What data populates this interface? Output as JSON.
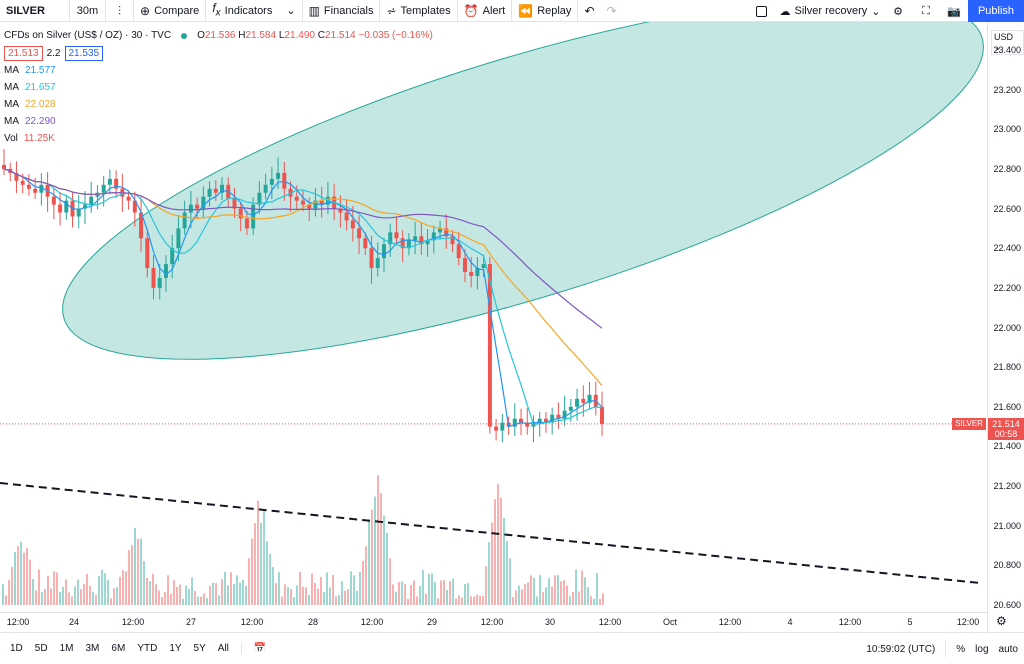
{
  "toolbar": {
    "symbol": "SILVER",
    "interval": "30m",
    "compare": "Compare",
    "indicators": "Indicators",
    "financials": "Financials",
    "templates": "Templates",
    "alert": "Alert",
    "replay": "Replay",
    "layout_name": "Silver recovery",
    "publish": "Publish"
  },
  "legend": {
    "title": "CFDs on Silver (US$ / OZ) · 30 · TVC",
    "ohlc": {
      "o_label": "O",
      "o": "21.536",
      "h_label": "H",
      "h": "21.584",
      "l_label": "L",
      "l": "21.490",
      "c_label": "C",
      "c": "21.514",
      "chg": "−0.035 (−0.16%)"
    },
    "bid": "21.513",
    "spread": "2.2",
    "ask": "21.535",
    "mas": [
      {
        "label": "MA",
        "value": "21.577",
        "color": "#2196f3"
      },
      {
        "label": "MA",
        "value": "21.657",
        "color": "#26c6da"
      },
      {
        "label": "MA",
        "value": "22.028",
        "color": "#f5a623"
      },
      {
        "label": "MA",
        "value": "22.290",
        "color": "#7e57c2"
      }
    ],
    "vol_label": "Vol",
    "vol_value": "11.25K"
  },
  "price_axis": {
    "currency": "USD",
    "ticks": [
      "23.400",
      "23.200",
      "23.000",
      "22.800",
      "22.600",
      "22.400",
      "22.200",
      "22.000",
      "21.800",
      "21.600",
      "21.400",
      "21.200",
      "21.000",
      "20.800",
      "20.600"
    ],
    "last_price": "21.514",
    "countdown": "00:58",
    "symbol_tag": "SILVER"
  },
  "time_axis": {
    "ticks": [
      "12:00",
      "24",
      "12:00",
      "27",
      "12:00",
      "28",
      "12:00",
      "29",
      "12:00",
      "30",
      "12:00",
      "Oct",
      "12:00",
      "4",
      "12:00",
      "5",
      "12:00"
    ]
  },
  "bottom": {
    "ranges": [
      "1D",
      "5D",
      "1M",
      "3M",
      "6M",
      "YTD",
      "1Y",
      "5Y",
      "All"
    ],
    "clock": "10:59:02 (UTC)",
    "percent": "%",
    "log": "log",
    "auto": "auto"
  },
  "colors": {
    "up": "#26a69a",
    "down": "#ef5350",
    "ellipse_fill": "#b2dfdb",
    "ellipse_stroke": "#26a69a",
    "accent": "#2962ff"
  },
  "chart_data": {
    "type": "candlestick",
    "x_labels": [
      "24",
      "27",
      "28",
      "29",
      "30"
    ],
    "y_range": [
      20.6,
      23.4
    ],
    "closes": [
      22.8,
      22.78,
      22.74,
      22.72,
      22.7,
      22.68,
      22.72,
      22.66,
      22.62,
      22.58,
      22.64,
      22.56,
      22.6,
      22.62,
      22.66,
      22.68,
      22.72,
      22.75,
      22.7,
      22.66,
      22.64,
      22.58,
      22.45,
      22.3,
      22.2,
      22.25,
      22.32,
      22.4,
      22.5,
      22.58,
      22.62,
      22.6,
      22.66,
      22.7,
      22.68,
      22.72,
      22.65,
      22.6,
      22.55,
      22.5,
      22.62,
      22.68,
      22.72,
      22.75,
      22.78,
      22.7,
      22.66,
      22.64,
      22.62,
      22.6,
      22.64,
      22.62,
      22.66,
      22.6,
      22.58,
      22.54,
      22.5,
      22.45,
      22.4,
      22.3,
      22.35,
      22.42,
      22.48,
      22.45,
      22.4,
      22.44,
      22.46,
      22.42,
      22.44,
      22.48,
      22.5,
      22.46,
      22.42,
      22.35,
      22.28,
      22.26,
      22.3,
      22.32,
      21.5,
      21.48,
      21.52,
      21.5,
      21.54,
      21.52,
      21.5,
      21.52,
      21.54,
      21.52,
      21.56,
      21.54,
      21.58,
      21.6,
      21.64,
      21.62,
      21.66,
      21.6,
      21.514
    ]
  },
  "volume_trend_label": ""
}
